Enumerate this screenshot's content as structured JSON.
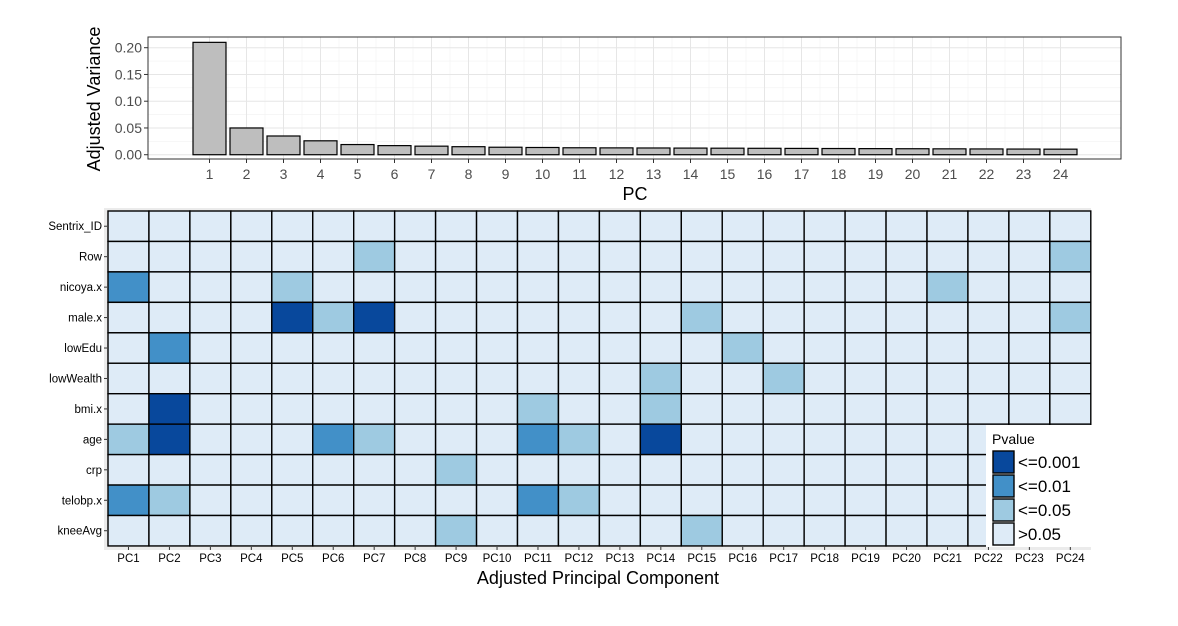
{
  "chart_data": [
    {
      "type": "bar",
      "xlabel": "PC",
      "ylabel": "Adjusted Variance",
      "categories": [
        "1",
        "2",
        "3",
        "4",
        "5",
        "6",
        "7",
        "8",
        "9",
        "10",
        "11",
        "12",
        "13",
        "14",
        "15",
        "16",
        "17",
        "18",
        "19",
        "20",
        "21",
        "22",
        "23",
        "24"
      ],
      "values": [
        0.21,
        0.05,
        0.035,
        0.026,
        0.019,
        0.017,
        0.016,
        0.015,
        0.014,
        0.0135,
        0.013,
        0.0128,
        0.0126,
        0.0124,
        0.0122,
        0.012,
        0.0118,
        0.0116,
        0.0114,
        0.0112,
        0.011,
        0.0108,
        0.0106,
        0.0104
      ],
      "ylim": [
        -0.008,
        0.22
      ],
      "yticks": [
        0.0,
        0.05,
        0.1,
        0.15,
        0.2
      ],
      "ytick_labels": [
        "0.00",
        "0.05",
        "0.10",
        "0.15",
        "0.20"
      ],
      "bar_color": "#bebebe",
      "grid": true
    },
    {
      "type": "heatmap",
      "xlabel": "Adjusted Principal Component",
      "ylabel": "",
      "columns": [
        "PC1",
        "PC2",
        "PC3",
        "PC4",
        "PC5",
        "PC6",
        "PC7",
        "PC8",
        "PC9",
        "PC10",
        "PC11",
        "PC12",
        "PC13",
        "PC14",
        "PC15",
        "PC16",
        "PC17",
        "PC18",
        "PC19",
        "PC20",
        "PC21",
        "PC22",
        "PC23",
        "PC24"
      ],
      "rows": [
        "Sentrix_ID",
        "Row",
        "nicoya.x",
        "male.x",
        "lowEdu",
        "lowWealth",
        "bmi.x",
        "age",
        "crp",
        "telobp.x",
        "kneeAvg"
      ],
      "cells": [
        [
          "d",
          "d",
          "d",
          "d",
          "d",
          "d",
          "d",
          "d",
          "d",
          "d",
          "d",
          "d",
          "d",
          "d",
          "d",
          "d",
          "d",
          "d",
          "d",
          "d",
          "d",
          "d",
          "d",
          "d"
        ],
        [
          "d",
          "d",
          "d",
          "d",
          "d",
          "d",
          "c",
          "d",
          "d",
          "d",
          "d",
          "d",
          "d",
          "d",
          "d",
          "d",
          "d",
          "d",
          "d",
          "d",
          "d",
          "d",
          "d",
          "c"
        ],
        [
          "b",
          "d",
          "d",
          "d",
          "c",
          "d",
          "d",
          "d",
          "d",
          "d",
          "d",
          "d",
          "d",
          "d",
          "d",
          "d",
          "d",
          "d",
          "d",
          "d",
          "c",
          "d",
          "d",
          "d"
        ],
        [
          "d",
          "d",
          "d",
          "d",
          "a",
          "c",
          "a",
          "d",
          "d",
          "d",
          "d",
          "d",
          "d",
          "d",
          "c",
          "d",
          "d",
          "d",
          "d",
          "d",
          "d",
          "d",
          "d",
          "c"
        ],
        [
          "d",
          "b",
          "d",
          "d",
          "d",
          "d",
          "d",
          "d",
          "d",
          "d",
          "d",
          "d",
          "d",
          "d",
          "d",
          "c",
          "d",
          "d",
          "d",
          "d",
          "d",
          "d",
          "d",
          "d"
        ],
        [
          "d",
          "d",
          "d",
          "d",
          "d",
          "d",
          "d",
          "d",
          "d",
          "d",
          "d",
          "d",
          "d",
          "c",
          "d",
          "d",
          "c",
          "d",
          "d",
          "d",
          "d",
          "d",
          "d",
          "d"
        ],
        [
          "d",
          "a",
          "d",
          "d",
          "d",
          "d",
          "d",
          "d",
          "d",
          "d",
          "c",
          "d",
          "d",
          "c",
          "d",
          "d",
          "d",
          "d",
          "d",
          "d",
          "d",
          "d",
          "d",
          "d"
        ],
        [
          "c",
          "a",
          "d",
          "d",
          "d",
          "b",
          "c",
          "d",
          "d",
          "d",
          "b",
          "c",
          "d",
          "a",
          "d",
          "d",
          "d",
          "d",
          "d",
          "d",
          "d",
          "d",
          "d",
          "d"
        ],
        [
          "d",
          "d",
          "d",
          "d",
          "d",
          "d",
          "d",
          "d",
          "c",
          "d",
          "d",
          "d",
          "d",
          "d",
          "d",
          "d",
          "d",
          "d",
          "d",
          "d",
          "d",
          "d",
          "d",
          "d"
        ],
        [
          "b",
          "c",
          "d",
          "d",
          "d",
          "d",
          "d",
          "d",
          "d",
          "d",
          "b",
          "c",
          "d",
          "d",
          "d",
          "d",
          "d",
          "d",
          "d",
          "d",
          "d",
          "d",
          "d",
          "d"
        ],
        [
          "d",
          "d",
          "d",
          "d",
          "d",
          "d",
          "d",
          "d",
          "c",
          "d",
          "d",
          "d",
          "d",
          "d",
          "c",
          "d",
          "d",
          "d",
          "d",
          "d",
          "d",
          "d",
          "d",
          "d"
        ]
      ],
      "legend": {
        "title": "Pvalue",
        "placement": "bottom-right",
        "levels": [
          {
            "key": "a",
            "label": "<=0.001",
            "color": "#08489c"
          },
          {
            "key": "b",
            "label": "<=0.01",
            "color": "#4290c8"
          },
          {
            "key": "c",
            "label": "<=0.05",
            "color": "#9ecae1"
          },
          {
            "key": "d",
            "label": ">0.05",
            "color": "#deebf7"
          }
        ]
      }
    }
  ]
}
